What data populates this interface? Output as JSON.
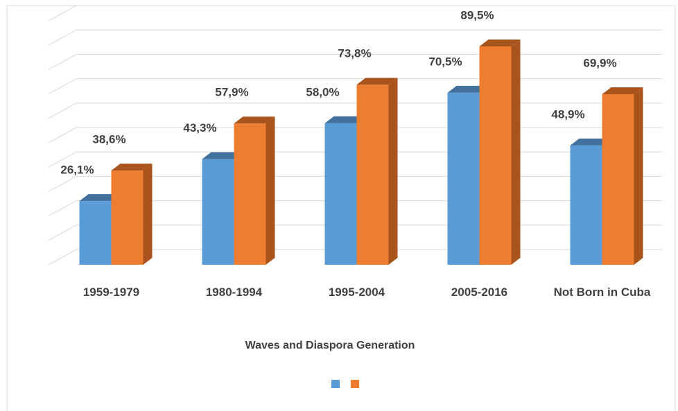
{
  "chart_data": {
    "type": "bar3d",
    "x_label": "Waves and Diaspora  Generation",
    "categories": [
      "1959-1979",
      "1980-1994",
      "1995-2004",
      "2005-2016",
      "Not Born in Cuba"
    ],
    "series": [
      {
        "color": "#5b9bd5",
        "side_color": "#41719c",
        "values": [
          26.1,
          43.3,
          58.0,
          70.5,
          48.9
        ],
        "value_labels": [
          "26,1%",
          "43,3%",
          "58,0%",
          "70,5%",
          "48,9%"
        ]
      },
      {
        "color": "#ed7d31",
        "side_color": "#a9531d",
        "values": [
          38.6,
          57.9,
          73.8,
          89.5,
          69.9
        ],
        "value_labels": [
          "38,6%",
          "57,9%",
          "73,8%",
          "89,5%",
          "69,9%"
        ]
      }
    ],
    "ylim": [
      0,
      100
    ],
    "yticks": [
      0,
      10,
      20,
      30,
      40,
      50,
      60,
      70,
      80,
      90,
      100
    ],
    "grid": true
  }
}
